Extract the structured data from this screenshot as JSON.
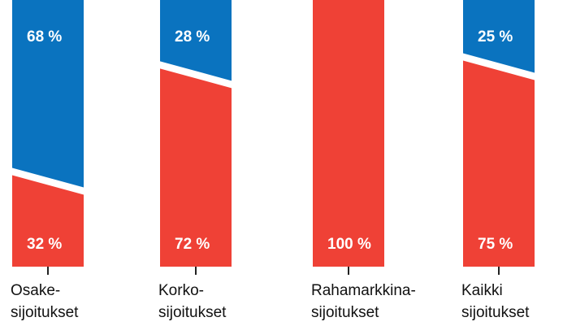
{
  "chart_data": {
    "type": "bar",
    "stacked": true,
    "categories": [
      "Osake-\nsijoitukset",
      "Korko-\nsijoitukset",
      "Rahamarkkina-\nsijoitukset",
      "Kaikki\nsijoitukset"
    ],
    "ylim": [
      0,
      100
    ],
    "series": [
      {
        "color": "#ef4136",
        "values": [
          32,
          72,
          100,
          75
        ],
        "value_labels": [
          "32 %",
          "72 %",
          "100 %",
          "75 %"
        ]
      },
      {
        "color": "#0a73bf",
        "values": [
          68,
          28,
          0,
          25
        ],
        "value_labels": [
          "68 %",
          "28 %",
          null,
          "25 %"
        ]
      }
    ]
  }
}
